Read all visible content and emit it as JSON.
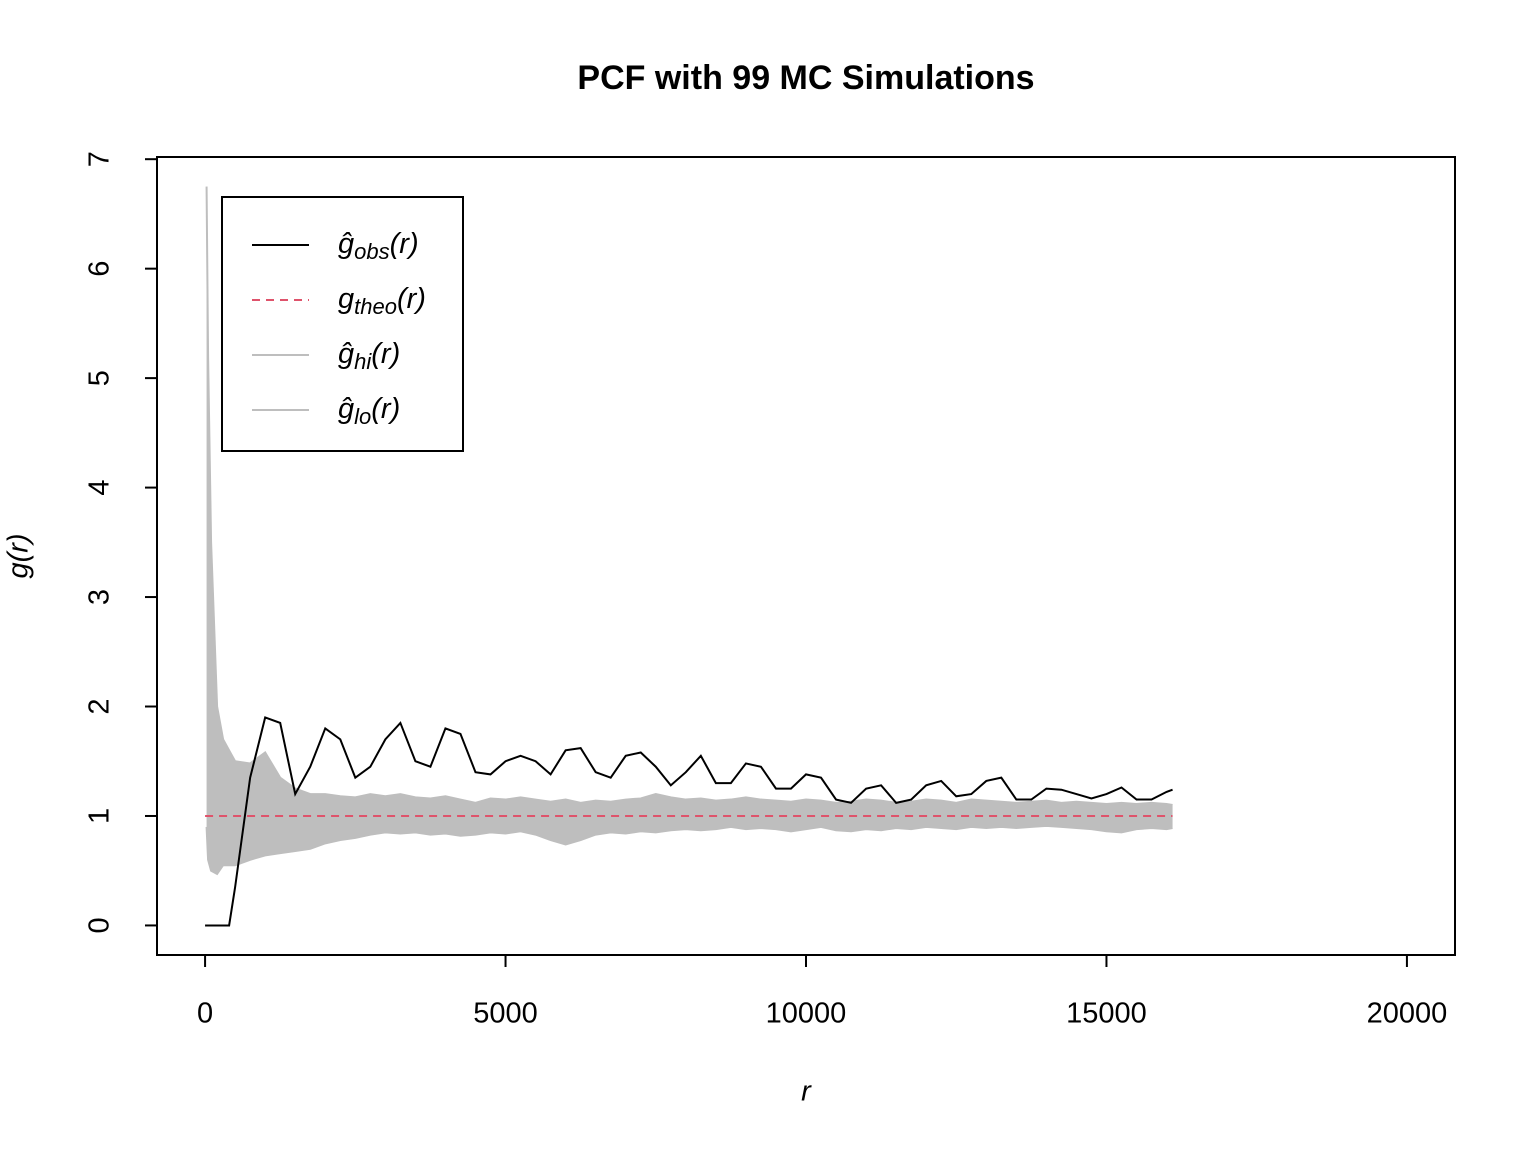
{
  "chart_data": {
    "type": "envelope",
    "title": "PCF with 99 MC Simulations",
    "x_label": "r",
    "y_label": "g(r)",
    "xlim": [
      -800,
      20800
    ],
    "ylim": [
      -0.27,
      7.02
    ],
    "xticks": [
      0,
      5000,
      10000,
      15000,
      20000
    ],
    "yticks": [
      0,
      1,
      2,
      3,
      4,
      5,
      6,
      7
    ],
    "legend": "topleft",
    "x": [
      0,
      25,
      50,
      100,
      200,
      300,
      400,
      500,
      750,
      1000,
      1250,
      1500,
      1750,
      2000,
      2250,
      2500,
      2750,
      3000,
      3250,
      3500,
      3750,
      4000,
      4250,
      4500,
      4750,
      5000,
      5250,
      5500,
      5750,
      6000,
      6250,
      6500,
      6750,
      7000,
      7250,
      7500,
      7750,
      8000,
      8250,
      8500,
      8750,
      9000,
      9250,
      9500,
      9750,
      10000,
      10250,
      10500,
      10750,
      11000,
      11250,
      11500,
      11750,
      12000,
      12250,
      12500,
      12750,
      13000,
      13250,
      13500,
      13750,
      14000,
      14250,
      14500,
      14750,
      15000,
      15250,
      15500,
      15750,
      16000,
      16100
    ],
    "series": [
      {
        "name": "ĝobs(r)",
        "color": "#000000",
        "linestyle": "solid",
        "values": [
          0,
          0,
          0,
          0,
          0,
          0,
          0,
          0.35,
          1.35,
          1.9,
          1.85,
          1.2,
          1.45,
          1.8,
          1.7,
          1.35,
          1.45,
          1.7,
          1.85,
          1.5,
          1.45,
          1.8,
          1.75,
          1.4,
          1.38,
          1.5,
          1.55,
          1.5,
          1.38,
          1.6,
          1.62,
          1.4,
          1.35,
          1.55,
          1.58,
          1.45,
          1.28,
          1.4,
          1.55,
          1.3,
          1.3,
          1.48,
          1.45,
          1.25,
          1.25,
          1.38,
          1.35,
          1.15,
          1.12,
          1.25,
          1.28,
          1.12,
          1.15,
          1.28,
          1.32,
          1.18,
          1.2,
          1.32,
          1.35,
          1.15,
          1.15,
          1.25,
          1.24,
          1.2,
          1.16,
          1.2,
          1.26,
          1.15,
          1.15,
          1.22,
          1.24
        ]
      },
      {
        "name": "gtheo(r)",
        "color": "#df536b",
        "linestyle": "dashed",
        "values": [
          1,
          1,
          1,
          1,
          1,
          1,
          1,
          1,
          1,
          1,
          1,
          1,
          1,
          1,
          1,
          1,
          1,
          1,
          1,
          1,
          1,
          1,
          1,
          1,
          1,
          1,
          1,
          1,
          1,
          1,
          1,
          1,
          1,
          1,
          1,
          1,
          1,
          1,
          1,
          1,
          1,
          1,
          1,
          1,
          1,
          1,
          1,
          1,
          1,
          1,
          1,
          1,
          1,
          1,
          1,
          1,
          1,
          1,
          1,
          1,
          1,
          1,
          1,
          1,
          1,
          1,
          1,
          1,
          1,
          1,
          1
        ]
      },
      {
        "name": "ĝhi(r)",
        "color": "#bebebe",
        "linestyle": "solid",
        "band": "hi",
        "values": [
          null,
          6.75,
          5.2,
          3.5,
          2.0,
          1.7,
          1.6,
          1.5,
          1.48,
          1.58,
          1.35,
          1.25,
          1.2,
          1.2,
          1.18,
          1.17,
          1.2,
          1.18,
          1.2,
          1.17,
          1.16,
          1.18,
          1.15,
          1.12,
          1.16,
          1.15,
          1.17,
          1.15,
          1.13,
          1.15,
          1.12,
          1.14,
          1.13,
          1.15,
          1.16,
          1.2,
          1.17,
          1.15,
          1.16,
          1.14,
          1.15,
          1.17,
          1.15,
          1.14,
          1.13,
          1.15,
          1.14,
          1.12,
          1.13,
          1.15,
          1.14,
          1.12,
          1.13,
          1.15,
          1.14,
          1.12,
          1.15,
          1.14,
          1.13,
          1.12,
          1.13,
          1.14,
          1.12,
          1.13,
          1.12,
          1.11,
          1.12,
          1.11,
          1.12,
          1.11,
          1.1
        ]
      },
      {
        "name": "ĝlo(r)",
        "color": "#bebebe",
        "linestyle": "solid",
        "band": "lo",
        "values": [
          null,
          0.9,
          0.6,
          0.5,
          0.47,
          0.55,
          0.55,
          0.55,
          0.6,
          0.64,
          0.66,
          0.68,
          0.7,
          0.75,
          0.78,
          0.8,
          0.83,
          0.85,
          0.84,
          0.85,
          0.83,
          0.84,
          0.82,
          0.83,
          0.85,
          0.84,
          0.86,
          0.83,
          0.78,
          0.74,
          0.78,
          0.83,
          0.85,
          0.84,
          0.86,
          0.85,
          0.87,
          0.88,
          0.87,
          0.88,
          0.9,
          0.88,
          0.89,
          0.88,
          0.86,
          0.88,
          0.9,
          0.87,
          0.86,
          0.88,
          0.87,
          0.89,
          0.88,
          0.9,
          0.89,
          0.88,
          0.9,
          0.89,
          0.9,
          0.89,
          0.9,
          0.91,
          0.9,
          0.89,
          0.88,
          0.86,
          0.85,
          0.88,
          0.89,
          0.88,
          0.89
        ]
      }
    ]
  }
}
